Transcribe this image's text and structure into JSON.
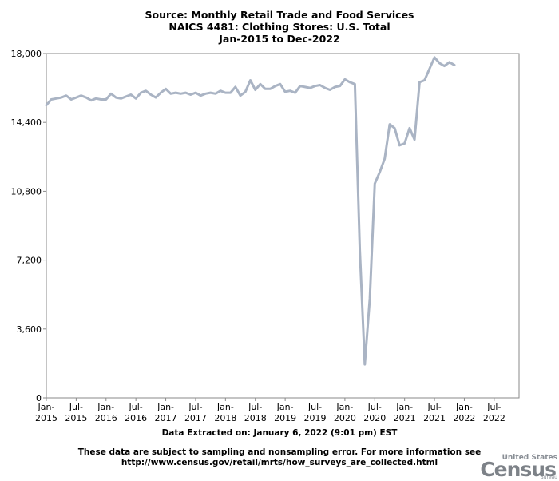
{
  "header": {
    "title_line1": "Source: Monthly Retail Trade and Food Services",
    "title_line2": "NAICS 4481: Clothing Stores: U.S. Total",
    "title_line3": "Jan-2015 to Dec-2022"
  },
  "footer": {
    "extracted": "Data Extracted on: January 6, 2022 (9:01 pm) EST",
    "disclaimer_line1": "These data are subject to sampling and nonsampling error. For more information see",
    "disclaimer_line2": "http://www.census.gov/retail/mrts/how_surveys_are_collected.html"
  },
  "logo": {
    "small_text": "United States",
    "big_text": "Census",
    "tiny_text": "Bureau"
  },
  "chart_data": {
    "type": "line",
    "x_start": "2015-01",
    "x_end": "2022-12",
    "ylim": [
      0,
      18000
    ],
    "yticks": [
      0,
      3600,
      7200,
      10800,
      14400,
      18000
    ],
    "ytick_labels": [
      "0",
      "3,600",
      "7,200",
      "10,800",
      "14,400",
      "18,000"
    ],
    "xtick_labels": [
      [
        "Jan-",
        "2015"
      ],
      [
        "Jul-",
        "2015"
      ],
      [
        "Jan-",
        "2016"
      ],
      [
        "Jul-",
        "2016"
      ],
      [
        "Jan-",
        "2017"
      ],
      [
        "Jul-",
        "2017"
      ],
      [
        "Jan-",
        "2018"
      ],
      [
        "Jul-",
        "2018"
      ],
      [
        "Jan-",
        "2019"
      ],
      [
        "Jul-",
        "2019"
      ],
      [
        "Jan-",
        "2020"
      ],
      [
        "Jul-",
        "2020"
      ],
      [
        "Jan-",
        "2021"
      ],
      [
        "Jul-",
        "2021"
      ],
      [
        "Jan-",
        "2022"
      ],
      [
        "Jul-",
        "2022"
      ]
    ],
    "grid": false,
    "series_color": "#aab4c4",
    "series": [
      {
        "values": [
          15300,
          15600,
          15650,
          15700,
          15800,
          15600,
          15700,
          15800,
          15700,
          15550,
          15650,
          15600,
          15600,
          15900,
          15700,
          15650,
          15750,
          15850,
          15650,
          15950,
          16050,
          15850,
          15700,
          15950,
          16150,
          15900,
          15950,
          15900,
          15950,
          15850,
          15950,
          15800,
          15900,
          15950,
          15900,
          16050,
          15950,
          15950,
          16250,
          15800,
          16000,
          16600,
          16100,
          16400,
          16150,
          16150,
          16300,
          16400,
          16000,
          16050,
          15950,
          16300,
          16250,
          16200,
          16300,
          16350,
          16200,
          16100,
          16250,
          16300,
          16650,
          16500,
          16400,
          7700,
          1750,
          5200,
          11200,
          11800,
          12500,
          14300,
          14100,
          13200,
          13300,
          14100,
          13500,
          16500,
          16600,
          17200,
          17800,
          17500,
          17350,
          17550,
          17400
        ]
      }
    ]
  }
}
